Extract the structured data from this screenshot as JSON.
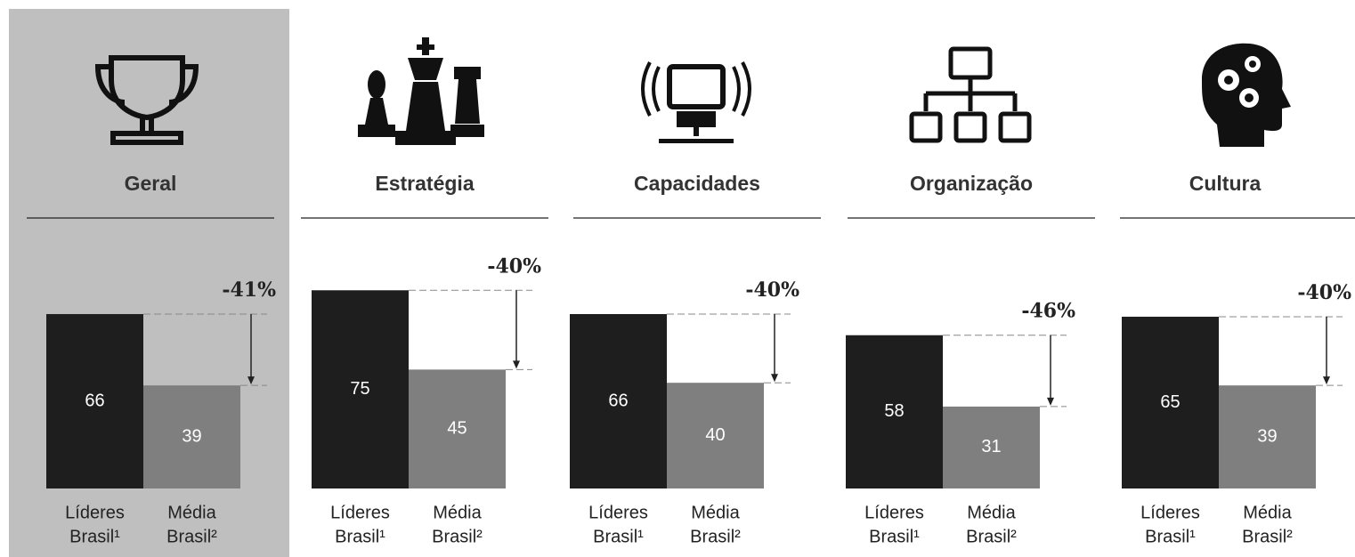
{
  "chart_data": [
    {
      "type": "bar",
      "title": "Geral",
      "highlight": true,
      "categories": [
        [
          "Líderes",
          "Brasil¹"
        ],
        [
          "Média",
          "Brasil²"
        ]
      ],
      "values": [
        66,
        39
      ],
      "colors": [
        "#1e1e1e",
        "#7f7f7f"
      ],
      "annotation": "-41%"
    },
    {
      "type": "bar",
      "title": "Estratégia",
      "highlight": false,
      "categories": [
        [
          "Líderes",
          "Brasil¹"
        ],
        [
          "Média",
          "Brasil²"
        ]
      ],
      "values": [
        75,
        45
      ],
      "colors": [
        "#1e1e1e",
        "#7f7f7f"
      ],
      "annotation": "-40%"
    },
    {
      "type": "bar",
      "title": "Capacidades",
      "highlight": false,
      "categories": [
        [
          "Líderes",
          "Brasil¹"
        ],
        [
          "Média",
          "Brasil²"
        ]
      ],
      "values": [
        66,
        40
      ],
      "colors": [
        "#1e1e1e",
        "#7f7f7f"
      ],
      "annotation": "-40%"
    },
    {
      "type": "bar",
      "title": "Organização",
      "highlight": false,
      "categories": [
        [
          "Líderes",
          "Brasil¹"
        ],
        [
          "Média",
          "Brasil²"
        ]
      ],
      "values": [
        58,
        31
      ],
      "colors": [
        "#1e1e1e",
        "#7f7f7f"
      ],
      "annotation": "-46%"
    },
    {
      "type": "bar",
      "title": "Cultura",
      "highlight": false,
      "categories": [
        [
          "Líderes",
          "Brasil¹"
        ],
        [
          "Média",
          "Brasil²"
        ]
      ],
      "values": [
        65,
        39
      ],
      "colors": [
        "#1e1e1e",
        "#7f7f7f"
      ],
      "annotation": "-40%"
    }
  ]
}
